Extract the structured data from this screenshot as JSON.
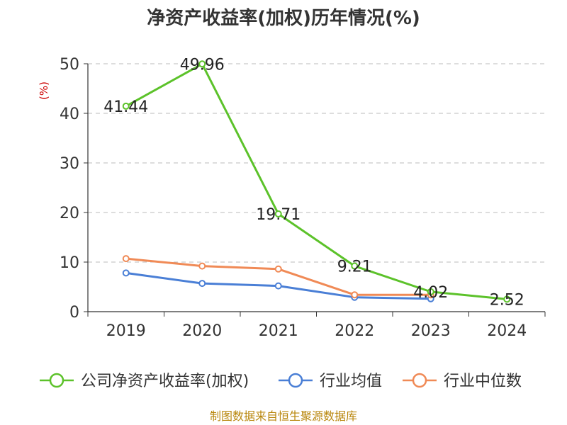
{
  "chart_data": {
    "type": "line",
    "title": "净资产收益率(加权)历年情况(%)",
    "ylabel": "(%)",
    "xlabel": "",
    "ylim": [
      0,
      50
    ],
    "yticks": [
      0,
      10,
      20,
      30,
      40,
      50
    ],
    "grid": true,
    "legend_position": "bottom",
    "categories": [
      "2019",
      "2020",
      "2021",
      "2022",
      "2023",
      "2024"
    ],
    "series": [
      {
        "name": "公司净资产收益率(加权)",
        "color": "#5cc22a",
        "values": [
          41.44,
          49.96,
          19.71,
          9.21,
          4.02,
          2.52
        ],
        "labels": [
          "41.44",
          "49.96",
          "19.71",
          "9.21",
          "4.02",
          "2.52"
        ]
      },
      {
        "name": "行业均值",
        "color": "#4a7fd6",
        "values": [
          7.8,
          5.7,
          5.2,
          2.9,
          2.6,
          null
        ]
      },
      {
        "name": "行业中位数",
        "color": "#f08a56",
        "values": [
          10.7,
          9.2,
          8.6,
          3.4,
          3.4,
          null
        ]
      }
    ]
  },
  "source": "制图数据来自恒生聚源数据库"
}
